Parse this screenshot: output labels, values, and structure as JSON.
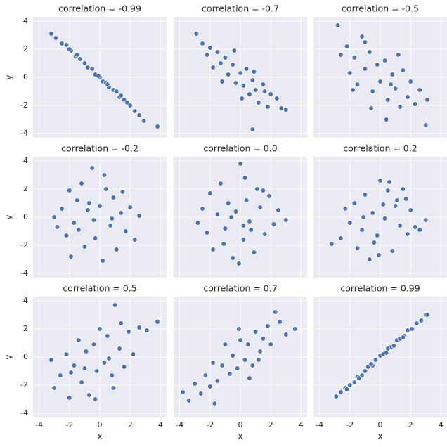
{
  "chart_data": [
    {
      "type": "scatter",
      "title": "correlation = -0.99",
      "color": "#4c72b0",
      "grid": true,
      "ylabel": "y",
      "xlim": [
        -4.4,
        4.4
      ],
      "ylim": [
        -4.3,
        4.3
      ],
      "xticks": [
        -4,
        -2,
        0,
        2,
        4
      ],
      "yticks": [
        -4,
        -2,
        0,
        2,
        4
      ],
      "x": [
        -3.2,
        -2.9,
        -2.5,
        -2.2,
        -1.9,
        -1.6,
        -1.3,
        -1.0,
        -0.8,
        -0.5,
        -0.3,
        0,
        0.2,
        0.4,
        0.6,
        0.9,
        1.1,
        1.3,
        1.6,
        1.8,
        2.0,
        2.3,
        2.6,
        2.9,
        3.8,
        -0.1,
        0.5,
        -1.5,
        1.4,
        -2.0
      ],
      "y": [
        3.1,
        2.8,
        2.4,
        2.3,
        1.9,
        1.5,
        1.3,
        1.0,
        0.7,
        0.6,
        0.2,
        0.0,
        -0.3,
        -0.4,
        -0.7,
        -0.9,
        -1.0,
        -1.4,
        -1.6,
        -1.8,
        -2.0,
        -2.4,
        -2.7,
        -3.1,
        -3.5,
        0.1,
        -0.5,
        1.6,
        -1.3,
        2.0
      ]
    },
    {
      "type": "scatter",
      "title": "correlation = -0.7",
      "color": "#4c72b0",
      "grid": true,
      "xlim": [
        -4.4,
        4.4
      ],
      "ylim": [
        -4.3,
        4.3
      ],
      "xticks": [
        -4,
        -2,
        0,
        2,
        4
      ],
      "yticks": [
        -4,
        -2,
        0,
        2,
        4
      ],
      "x": [
        -2.9,
        -2.5,
        -2.2,
        -2.0,
        -1.8,
        -1.5,
        -1.3,
        -1.0,
        -0.8,
        -0.5,
        -0.3,
        0,
        0.2,
        0.4,
        0.6,
        0.8,
        1.0,
        1.2,
        1.5,
        1.8,
        2.0,
        2.4,
        2.7,
        3.0,
        -1.2,
        0.1,
        0.9,
        -0.4,
        1.6,
        0.8
      ],
      "y": [
        3.1,
        2.4,
        1.6,
        2.1,
        0.7,
        1.8,
        1.0,
        1.4,
        0.2,
        0.9,
        -0.4,
        0.3,
        -0.6,
        0.6,
        -1.2,
        -0.2,
        -0.9,
        -1.8,
        -0.5,
        -2.1,
        -1.2,
        -1.5,
        -2.2,
        -2.3,
        -0.3,
        -1.5,
        0.4,
        1.9,
        -1.0,
        -3.7
      ]
    },
    {
      "type": "scatter",
      "title": "correlation = -0.5",
      "color": "#4c72b0",
      "grid": true,
      "xlim": [
        -4.4,
        4.4
      ],
      "ylim": [
        -4.3,
        4.3
      ],
      "xticks": [
        -4,
        -2,
        0,
        2,
        4
      ],
      "yticks": [
        -4,
        -2,
        0,
        2,
        4
      ],
      "x": [
        -2.8,
        -2.6,
        -2.2,
        -2.0,
        -1.7,
        -1.5,
        -1.2,
        -1.0,
        -0.7,
        -0.5,
        -0.2,
        0,
        0.3,
        0.5,
        0.8,
        1.0,
        1.3,
        1.5,
        1.8,
        2.0,
        2.3,
        2.6,
        3.0,
        3.1,
        -0.6,
        -1.0,
        0.4,
        1.2,
        -1.8,
        0.7
      ],
      "y": [
        3.7,
        1.6,
        2.2,
        0.3,
        1.4,
        -0.5,
        2.9,
        0.6,
        1.8,
        -1.0,
        0.9,
        -0.3,
        1.2,
        -1.6,
        0.2,
        -0.8,
        -2.1,
        0.5,
        -1.4,
        -0.3,
        -1.9,
        -0.9,
        -3.4,
        -1.6,
        -2.2,
        2.5,
        -3.0,
        1.6,
        -0.9,
        -0.5
      ]
    },
    {
      "type": "scatter",
      "title": "correlation = -0.2",
      "color": "#4c72b0",
      "grid": true,
      "ylabel": "y",
      "xlim": [
        -4.4,
        4.4
      ],
      "ylim": [
        -4.3,
        4.3
      ],
      "xticks": [
        -4,
        -2,
        0,
        2,
        4
      ],
      "yticks": [
        -4,
        -2,
        0,
        2,
        4
      ],
      "x": [
        -3.0,
        -2.8,
        -2.5,
        -2.2,
        -2.0,
        -1.7,
        -1.5,
        -1.2,
        -1.0,
        -0.8,
        -0.5,
        -0.3,
        0,
        0.2,
        0.4,
        0.7,
        0.9,
        1.1,
        1.4,
        1.7,
        2.0,
        2.3,
        2.6,
        -0.4,
        0.8,
        -1.9,
        -0.7,
        0.3,
        1.5,
        -1.4
      ],
      "y": [
        0.0,
        -0.7,
        0.6,
        -1.3,
        1.9,
        -0.4,
        1.2,
        2.4,
        -2.1,
        0.5,
        3.5,
        -1.5,
        0.8,
        -3.1,
        2.0,
        -0.6,
        1.4,
        -2.3,
        0.3,
        -1.0,
        0.7,
        -1.6,
        0.1,
        -0.2,
        -0.1,
        -2.8,
        1.0,
        3.0,
        1.8,
        -0.9
      ]
    },
    {
      "type": "scatter",
      "title": "correlation = 0.0",
      "color": "#4c72b0",
      "grid": true,
      "xlim": [
        -4.4,
        4.4
      ],
      "ylim": [
        -4.3,
        4.3
      ],
      "xticks": [
        -4,
        -2,
        0,
        2,
        4
      ],
      "yticks": [
        -4,
        -2,
        0,
        2,
        4
      ],
      "x": [
        -2.8,
        -2.5,
        -2.2,
        -2.0,
        -1.8,
        -1.5,
        -1.3,
        -1.0,
        -0.8,
        -0.5,
        -0.3,
        0,
        0.2,
        0.4,
        0.6,
        0.9,
        1.1,
        1.3,
        1.6,
        1.9,
        2.2,
        2.5,
        3.0,
        -0.1,
        0.3,
        -1.1,
        0.7,
        -0.6,
        1.5,
        0.2
      ],
      "y": [
        -0.4,
        0.6,
        -1.1,
        1.7,
        -2.3,
        0.2,
        2.4,
        -0.8,
        1.0,
        -2.9,
        0.4,
        3.8,
        -1.6,
        1.2,
        -0.3,
        -2.5,
        2.0,
        0.7,
        -1.2,
        1.5,
        -0.5,
        0.5,
        -0.2,
        -3.3,
        2.8,
        -1.9,
        -0.9,
        0.0,
        1.9,
        -0.6
      ]
    },
    {
      "type": "scatter",
      "title": "correlation = 0.2",
      "color": "#4c72b0",
      "grid": true,
      "xlim": [
        -4.4,
        4.4
      ],
      "ylim": [
        -4.3,
        4.3
      ],
      "xticks": [
        -4,
        -2,
        0,
        2,
        4
      ],
      "yticks": [
        -4,
        -2,
        0,
        2,
        4
      ],
      "x": [
        -3.2,
        -2.6,
        -2.3,
        -2.0,
        -1.7,
        -1.5,
        -1.2,
        -1.0,
        -0.7,
        -0.5,
        -0.2,
        0,
        0.3,
        0.5,
        0.8,
        1.0,
        1.3,
        1.5,
        1.8,
        2.0,
        2.3,
        2.6,
        3.0,
        -0.1,
        0.6,
        -1.1,
        1.1,
        -0.4,
        0.2,
        1.7
      ],
      "y": [
        -1.9,
        -1.5,
        0.6,
        -0.4,
        1.0,
        -2.2,
        -0.9,
        1.6,
        -3.0,
        0.3,
        -1.3,
        2.6,
        -0.1,
        1.9,
        -2.4,
        0.8,
        -0.6,
        2.0,
        -1.2,
        0.5,
        -0.7,
        -0.9,
        -0.2,
        -2.7,
        2.5,
        0.0,
        1.2,
        -1.8,
        0.9,
        1.3
      ]
    },
    {
      "type": "scatter",
      "title": "correlation = 0.5",
      "color": "#4c72b0",
      "grid": true,
      "xlabel": "x",
      "ylabel": "y",
      "xlim": [
        -4.4,
        4.4
      ],
      "ylim": [
        -4.3,
        4.3
      ],
      "xticks": [
        -4,
        -2,
        0,
        2,
        4
      ],
      "yticks": [
        -4,
        -2,
        0,
        2,
        4
      ],
      "x": [
        -3.2,
        -3.0,
        -2.6,
        -2.2,
        -2.0,
        -1.7,
        -1.4,
        -1.2,
        -0.9,
        -0.7,
        -0.4,
        -0.2,
        0,
        0.3,
        0.5,
        0.8,
        1.0,
        1.3,
        1.6,
        1.9,
        2.2,
        2.6,
        3.1,
        3.8,
        0.9,
        -0.3,
        -1.0,
        0.6,
        1.4,
        -1.9
      ],
      "y": [
        -0.2,
        -2.2,
        -1.3,
        0.2,
        -2.9,
        -0.6,
        1.2,
        -1.8,
        0.4,
        -2.7,
        0.9,
        -1.0,
        2.0,
        -0.4,
        1.5,
        -1.3,
        3.7,
        0.6,
        -0.7,
        1.8,
        0.2,
        2.1,
        1.9,
        2.5,
        -2.2,
        -3.0,
        -0.8,
        -0.1,
        2.4,
        -1.1
      ]
    },
    {
      "type": "scatter",
      "title": "correlation = 0.7",
      "color": "#4c72b0",
      "grid": true,
      "xlabel": "x",
      "xlim": [
        -4.4,
        4.4
      ],
      "ylim": [
        -4.3,
        4.3
      ],
      "xticks": [
        -4,
        -2,
        0,
        2,
        4
      ],
      "yticks": [
        -4,
        -2,
        0,
        2,
        4
      ],
      "x": [
        -3.8,
        -3.4,
        -3.0,
        -2.6,
        -2.3,
        -2.0,
        -1.8,
        -1.5,
        -1.2,
        -1.0,
        -0.7,
        -0.5,
        -0.2,
        0,
        0.3,
        0.5,
        0.8,
        1.0,
        1.3,
        1.5,
        1.8,
        2.0,
        2.3,
        2.6,
        3.0,
        3.6,
        -1.7,
        0.6,
        1.2,
        -0.1
      ],
      "y": [
        -2.5,
        -3.1,
        -1.9,
        -2.6,
        -1.3,
        -2.1,
        -0.4,
        -1.7,
        -0.6,
        0.9,
        -1.2,
        0.1,
        -0.8,
        1.2,
        -0.2,
        0.9,
        -0.6,
        1.8,
        0.4,
        1.3,
        2.2,
        0.9,
        3.2,
        2.5,
        1.6,
        2.0,
        -3.3,
        -1.5,
        -0.2,
        2.0
      ]
    },
    {
      "type": "scatter",
      "title": "correlation = 0.99",
      "color": "#4c72b0",
      "grid": true,
      "xlabel": "x",
      "xlim": [
        -4.4,
        4.4
      ],
      "ylim": [
        -4.3,
        4.3
      ],
      "xticks": [
        -4,
        -2,
        0,
        2,
        4
      ],
      "yticks": [
        -4,
        -2,
        0,
        2,
        4
      ],
      "x": [
        -2.9,
        -2.6,
        -2.3,
        -2.0,
        -1.7,
        -1.5,
        -1.2,
        -1.0,
        -0.8,
        -0.5,
        -0.3,
        0,
        0.2,
        0.4,
        0.7,
        0.9,
        1.1,
        1.3,
        1.6,
        1.8,
        2.1,
        2.4,
        2.7,
        3.0,
        3.1,
        -0.6,
        0.5,
        -1.4,
        1.5,
        -2.2
      ],
      "y": [
        -2.8,
        -2.5,
        -2.2,
        -2.0,
        -1.8,
        -1.4,
        -1.3,
        -1.0,
        -0.7,
        -0.6,
        -0.2,
        0.1,
        0.2,
        0.3,
        0.7,
        0.8,
        1.2,
        1.3,
        1.5,
        1.9,
        2.0,
        2.4,
        2.6,
        3.0,
        3.0,
        -0.5,
        0.6,
        -1.5,
        1.4,
        -2.3
      ]
    }
  ]
}
